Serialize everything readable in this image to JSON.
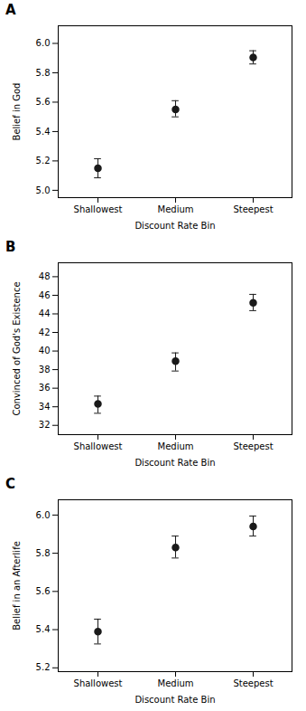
{
  "chart_data": [
    {
      "type": "errorbar",
      "title": "A",
      "ylabel": "Belief in God",
      "xlabel": "Discount Rate Bin",
      "categories": [
        "Shallowest",
        "Medium",
        "Steepest"
      ],
      "values": [
        5.15,
        5.55,
        5.905
      ],
      "errors_upper": [
        0.065,
        0.06,
        0.045
      ],
      "errors_lower": [
        0.065,
        0.05,
        0.045
      ],
      "ylim": [
        4.95,
        6.12
      ],
      "yticks": [
        {
          "value": 5.0,
          "label": "5.0"
        },
        5.2,
        5.4,
        5.6,
        5.8,
        {
          "value": 6.0,
          "label": "6.0"
        }
      ],
      "color": "#1a1a1a",
      "marker": "circle",
      "grid": false
    },
    {
      "type": "errorbar",
      "title": "B",
      "ylabel": "Convinced of God's Existence",
      "xlabel": "Discount Rate Bin",
      "categories": [
        "Shallowest",
        "Medium",
        "Steepest"
      ],
      "values": [
        34.3,
        38.9,
        45.2
      ],
      "errors_upper": [
        0.85,
        0.9,
        0.9
      ],
      "errors_lower": [
        1.0,
        1.05,
        0.85
      ],
      "ylim": [
        31.0,
        49.5
      ],
      "yticks": [
        32,
        34,
        36,
        38,
        40,
        42,
        44,
        46,
        48
      ],
      "color": "#1a1a1a",
      "marker": "circle",
      "grid": false
    },
    {
      "type": "errorbar",
      "title": "C",
      "ylabel": "Belief in an Afterlife",
      "xlabel": "Discount Rate Bin",
      "categories": [
        "Shallowest",
        "Medium",
        "Steepest"
      ],
      "values": [
        5.39,
        5.83,
        5.94
      ],
      "errors_upper": [
        0.065,
        0.06,
        0.055
      ],
      "errors_lower": [
        0.065,
        0.055,
        0.05
      ],
      "ylim": [
        5.18,
        6.08
      ],
      "yticks": [
        5.2,
        5.4,
        5.6,
        5.8,
        {
          "value": 6.0,
          "label": "6.0"
        }
      ],
      "color": "#1a1a1a",
      "marker": "circle",
      "grid": false
    }
  ]
}
